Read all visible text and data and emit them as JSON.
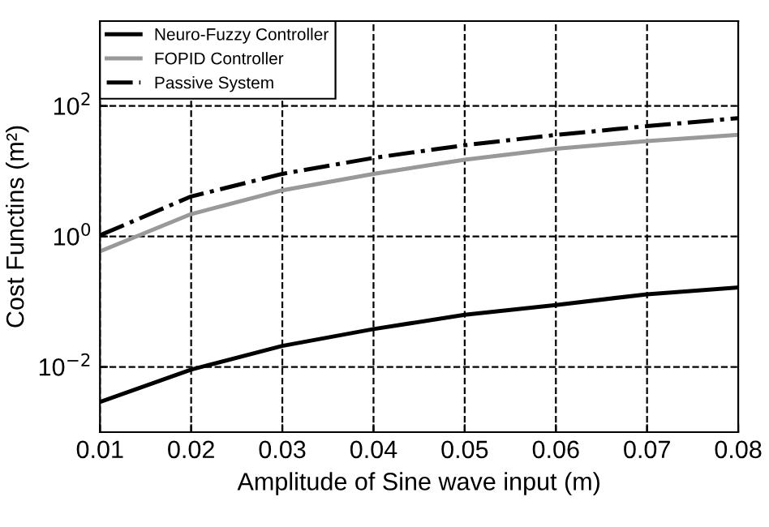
{
  "chart_data": {
    "type": "line",
    "xlabel": "Amplitude of Sine wave input (m)",
    "ylabel": "Cost Functins (m²)",
    "x": [
      0.01,
      0.02,
      0.03,
      0.04,
      0.05,
      0.06,
      0.07,
      0.08
    ],
    "series": [
      {
        "name": "Neuro-Fuzzy Controller",
        "color": "#000000",
        "line_style": "solid",
        "values": [
          0.0029,
          0.0091,
          0.021,
          0.038,
          0.063,
          0.089,
          0.13,
          0.165
        ]
      },
      {
        "name": "FOPID Controller",
        "color": "#999999",
        "line_style": "solid",
        "values": [
          0.59,
          2.2,
          5.1,
          9.1,
          15,
          22,
          29,
          36
        ]
      },
      {
        "name": "Passive System",
        "color": "#000000",
        "line_style": "dashdot",
        "values": [
          1.04,
          4.1,
          9.1,
          16,
          25,
          36,
          49,
          65
        ]
      }
    ],
    "log": "y",
    "xlim": [
      0.01,
      0.08
    ],
    "xticks": [
      0.01,
      0.02,
      0.03,
      0.04,
      0.05,
      0.06,
      0.07,
      0.08
    ],
    "ylim": [
      0.001,
      2000
    ],
    "yticks": [
      {
        "value": 0.01,
        "label": "10$^{−2}$"
      },
      {
        "value": 1,
        "label": "10$^{0}$"
      },
      {
        "value": 100,
        "label": "10$^{2}$"
      }
    ],
    "grid": true,
    "legend": "top left",
    "marker": "none"
  }
}
